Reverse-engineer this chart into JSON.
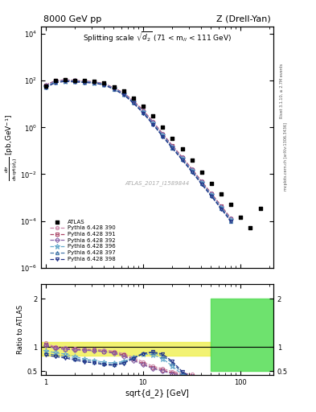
{
  "title_left": "8000 GeV pp",
  "title_right": "Z (Drell-Yan)",
  "watermark": "ATLAS_2017_I1589844",
  "right_label1": "Rivet 3.1.10, ≥ 2.7M events",
  "right_label2": "mcplots.cern.ch [arXiv:1306.3436]",
  "xmin": 0.9,
  "xmax": 220,
  "atlas_x": [
    1.0,
    1.26,
    1.59,
    2.0,
    2.52,
    3.17,
    4.0,
    5.04,
    6.35,
    8.0,
    10.08,
    12.7,
    16.0,
    20.16,
    25.4,
    32.0,
    40.32,
    50.8,
    64.0,
    80.63,
    101.59,
    128.0,
    161.27
  ],
  "atlas_y": [
    60,
    100,
    110,
    105,
    100,
    95,
    80,
    55,
    35,
    18,
    8.0,
    3.0,
    1.0,
    0.35,
    0.12,
    0.04,
    0.012,
    0.004,
    0.0014,
    0.0005,
    0.00015,
    5e-05,
    0.00035
  ],
  "p390_x": [
    1.0,
    1.26,
    1.59,
    2.0,
    2.52,
    3.17,
    4.0,
    5.04,
    6.35,
    8.0,
    10.08,
    12.7,
    16.0,
    20.16,
    25.4,
    32.0,
    40.32,
    50.8,
    64.0,
    80.63
  ],
  "p390_y": [
    65,
    100,
    108,
    102,
    96,
    90,
    75,
    50,
    30,
    14,
    5.5,
    1.8,
    0.55,
    0.17,
    0.055,
    0.017,
    0.005,
    0.0015,
    0.00045,
    0.00013
  ],
  "p391_x": [
    1.0,
    1.26,
    1.59,
    2.0,
    2.52,
    3.17,
    4.0,
    5.04,
    6.35,
    8.0,
    10.08,
    12.7,
    16.0,
    20.16,
    25.4,
    32.0,
    40.32,
    50.8,
    64.0,
    80.63
  ],
  "p391_y": [
    63,
    98,
    106,
    100,
    94,
    88,
    73,
    49,
    29,
    13.5,
    5.2,
    1.7,
    0.52,
    0.16,
    0.052,
    0.016,
    0.0048,
    0.00145,
    0.00043,
    0.000125
  ],
  "p392_x": [
    1.0,
    1.26,
    1.59,
    2.0,
    2.52,
    3.17,
    4.0,
    5.04,
    6.35,
    8.0,
    10.08,
    12.7,
    16.0,
    20.16,
    25.4,
    32.0,
    40.32,
    50.8,
    64.0,
    80.63
  ],
  "p392_y": [
    62,
    97,
    105,
    99,
    93,
    87,
    72,
    48,
    28.5,
    13.0,
    5.0,
    1.65,
    0.5,
    0.155,
    0.05,
    0.0155,
    0.0046,
    0.0014,
    0.00041,
    0.00012
  ],
  "p396_x": [
    1.0,
    1.26,
    1.59,
    2.0,
    2.52,
    3.17,
    4.0,
    5.04,
    6.35,
    8.0,
    10.08,
    12.7,
    16.0,
    20.16,
    25.4,
    32.0,
    40.32,
    50.8,
    64.0,
    80.63
  ],
  "p396_y": [
    55,
    88,
    97,
    93,
    88,
    83,
    69,
    46,
    27,
    12.0,
    4.6,
    1.5,
    0.46,
    0.142,
    0.046,
    0.0142,
    0.0042,
    0.00128,
    0.00038,
    0.00011
  ],
  "p397_x": [
    1.0,
    1.26,
    1.59,
    2.0,
    2.52,
    3.17,
    4.0,
    5.04,
    6.35,
    8.0,
    10.08,
    12.7,
    16.0,
    20.16,
    25.4,
    32.0,
    40.32,
    50.8,
    64.0,
    80.63
  ],
  "p397_y": [
    52,
    85,
    95,
    91,
    86,
    81,
    67,
    44,
    26,
    11.5,
    4.3,
    1.4,
    0.43,
    0.133,
    0.043,
    0.013,
    0.004,
    0.0012,
    0.00035,
    0.0001
  ],
  "p398_x": [
    1.0,
    1.26,
    1.59,
    2.0,
    2.52,
    3.17,
    4.0,
    5.04,
    6.35,
    8.0,
    10.08,
    12.7,
    16.0,
    20.16,
    25.4,
    32.0,
    40.32,
    50.8,
    64.0,
    80.63
  ],
  "p398_y": [
    50,
    82,
    92,
    88,
    83,
    78,
    65,
    43,
    25,
    11.0,
    4.1,
    1.35,
    0.41,
    0.127,
    0.041,
    0.0126,
    0.0037,
    0.00113,
    0.00033,
    9.5e-05
  ],
  "ratio390_x": [
    1.0,
    1.26,
    1.59,
    2.0,
    2.52,
    3.17,
    4.0,
    5.04,
    6.35,
    8.0,
    10.08,
    12.7,
    16.0,
    20.16,
    25.4,
    32.0
  ],
  "ratio390_y": [
    1.08,
    1.0,
    0.98,
    0.97,
    0.96,
    0.95,
    0.94,
    0.91,
    0.86,
    0.78,
    0.69,
    0.6,
    0.55,
    0.49,
    0.46,
    0.43
  ],
  "ratio391_x": [
    1.0,
    1.26,
    1.59,
    2.0,
    2.52,
    3.17,
    4.0,
    5.04,
    6.35,
    8.0,
    10.08,
    12.7,
    16.0,
    20.16,
    25.4,
    32.0
  ],
  "ratio391_y": [
    1.05,
    0.98,
    0.96,
    0.95,
    0.94,
    0.93,
    0.91,
    0.89,
    0.83,
    0.75,
    0.65,
    0.57,
    0.52,
    0.46,
    0.43,
    0.4
  ],
  "ratio392_x": [
    1.0,
    1.26,
    1.59,
    2.0,
    2.52,
    3.17,
    4.0,
    5.04,
    6.35,
    8.0,
    10.08,
    12.7,
    16.0,
    20.16,
    25.4,
    32.0
  ],
  "ratio392_y": [
    1.03,
    0.97,
    0.95,
    0.94,
    0.93,
    0.92,
    0.9,
    0.87,
    0.81,
    0.72,
    0.63,
    0.55,
    0.5,
    0.44,
    0.42,
    0.39
  ],
  "ratio396_x": [
    1.0,
    1.26,
    1.59,
    2.0,
    2.52,
    3.17,
    4.0,
    5.04,
    6.35,
    8.0,
    10.08,
    12.7,
    16.0,
    20.16,
    25.4,
    32.0
  ],
  "ratio396_y": [
    0.92,
    0.88,
    0.85,
    0.8,
    0.75,
    0.72,
    0.68,
    0.67,
    0.7,
    0.78,
    0.85,
    0.84,
    0.76,
    0.6,
    0.43,
    0.38
  ],
  "ratio397_x": [
    1.0,
    1.26,
    1.59,
    2.0,
    2.52,
    3.17,
    4.0,
    5.04,
    6.35,
    8.0,
    10.08,
    12.7,
    16.0,
    20.16,
    25.4,
    32.0
  ],
  "ratio397_y": [
    0.87,
    0.83,
    0.8,
    0.76,
    0.72,
    0.69,
    0.65,
    0.64,
    0.68,
    0.78,
    0.87,
    0.88,
    0.82,
    0.67,
    0.46,
    0.38
  ],
  "ratio398_x": [
    1.0,
    1.26,
    1.59,
    2.0,
    2.52,
    3.17,
    4.0,
    5.04,
    6.35,
    8.0,
    10.08,
    12.7,
    16.0,
    20.16,
    25.4,
    32.0
  ],
  "ratio398_y": [
    0.83,
    0.8,
    0.77,
    0.73,
    0.69,
    0.67,
    0.63,
    0.62,
    0.66,
    0.76,
    0.86,
    0.9,
    0.85,
    0.7,
    0.49,
    0.37
  ],
  "color_390": "#cc88aa",
  "color_391": "#aa4466",
  "color_392": "#8866aa",
  "color_396": "#66aacc",
  "color_397": "#4477aa",
  "color_398": "#223388",
  "marker_390": "o",
  "marker_391": "s",
  "marker_392": "D",
  "marker_396": "*",
  "marker_397": "^",
  "marker_398": "v",
  "ylim_main": [
    1e-06,
    20000.0
  ],
  "ylim_ratio": [
    0.42,
    2.3
  ]
}
